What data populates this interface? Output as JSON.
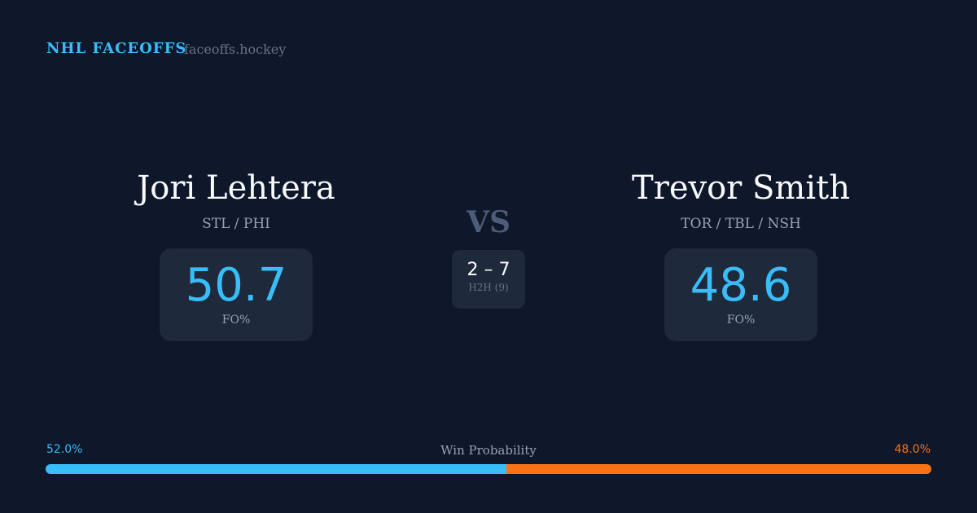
{
  "header": {
    "brand": "NHL FACEOFFS",
    "site": "faceoffs.hockey"
  },
  "left": {
    "name": "Jori Lehtera",
    "teams": "STL / PHI",
    "fo_pct": "50.7",
    "fo_label": "FO%"
  },
  "right": {
    "name": "Trevor Smith",
    "teams": "TOR / TBL / NSH",
    "fo_pct": "48.6",
    "fo_label": "FO%"
  },
  "vs": "VS",
  "h2h": {
    "score": "2 – 7",
    "label": "H2H (9)"
  },
  "win_probability": {
    "label": "Win Probability",
    "left_text": "52.0%",
    "right_text": "48.0%",
    "left_value": 52.0,
    "right_value": 48.0,
    "left_color": "#38bdf8",
    "right_color": "#f97316"
  }
}
